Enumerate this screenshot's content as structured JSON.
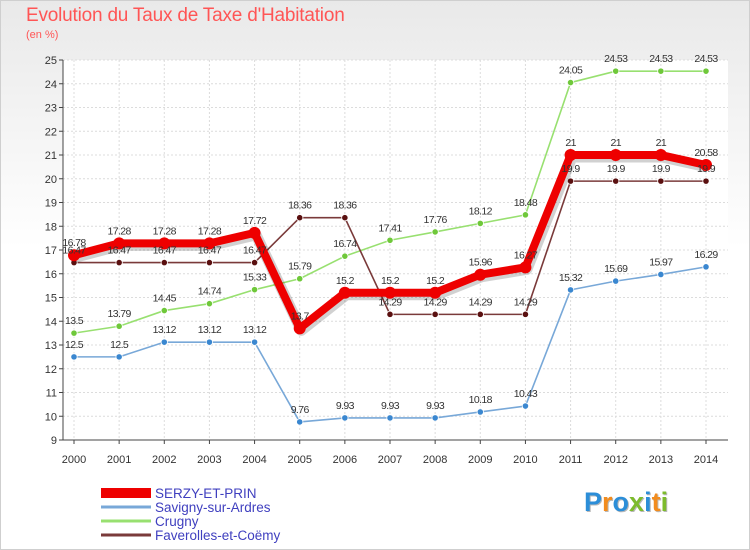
{
  "title": "Evolution du Taux de Taxe d'Habitation",
  "subtitle": "(en %)",
  "logo": {
    "text": "Proxiti",
    "letter_colors": [
      "#2c8ed8",
      "#f28c1e",
      "#2c8ed8",
      "#7dbb2c",
      "#2c8ed8",
      "#f28c1e",
      "#7dbb2c"
    ]
  },
  "chart_data": {
    "type": "line",
    "title": "Evolution du Taux de Taxe d'Habitation",
    "ylabel": "(en %)",
    "xlabel": "",
    "x": [
      "2000",
      "2001",
      "2002",
      "2003",
      "2004",
      "2005",
      "2006",
      "2007",
      "2008",
      "2009",
      "2010",
      "2011",
      "2012",
      "2013",
      "2014"
    ],
    "ylim": [
      9,
      25
    ],
    "yticks": [
      9,
      10,
      11,
      12,
      13,
      14,
      15,
      16,
      17,
      18,
      19,
      20,
      21,
      22,
      23,
      24,
      25
    ],
    "grid": true,
    "legend_position": "bottom-left",
    "series": [
      {
        "name": "SERZY-ET-PRIN",
        "color": "#ee0000",
        "marker_color": "#ee0000",
        "emphasis": true,
        "values": [
          16.78,
          17.28,
          17.28,
          17.28,
          17.72,
          13.7,
          15.2,
          15.2,
          15.2,
          15.96,
          16.27,
          21,
          21,
          21,
          20.58
        ],
        "labels": [
          "16.78",
          "17.28",
          "17.28",
          "17.28",
          "17.72",
          "13.7",
          "15.2",
          "15.2",
          "15.2",
          "15.96",
          "16.27",
          "21",
          "21",
          "21",
          "20.58"
        ]
      },
      {
        "name": "Savigny-sur-Ardres",
        "color": "#78a8d8",
        "marker_color": "#3a87d0",
        "values": [
          12.5,
          12.5,
          13.12,
          13.12,
          13.12,
          9.76,
          9.93,
          9.93,
          9.93,
          10.18,
          10.43,
          15.32,
          15.69,
          15.97,
          16.29
        ],
        "labels": [
          "12.5",
          "12.5",
          "13.12",
          "13.12",
          "13.12",
          "9.76",
          "9.93",
          "9.93",
          "9.93",
          "10.18",
          "10.43",
          "15.32",
          "15.69",
          "15.97",
          "16.29"
        ]
      },
      {
        "name": "Crugny",
        "color": "#98e070",
        "marker_color": "#6fc83a",
        "values": [
          13.5,
          13.79,
          14.45,
          14.74,
          15.33,
          15.79,
          16.74,
          17.41,
          17.76,
          18.12,
          18.48,
          24.05,
          24.53,
          24.53,
          24.53
        ],
        "labels": [
          "13.5",
          "13.79",
          "14.45",
          "14.74",
          "15.33",
          "15.79",
          "16.74",
          "17.41",
          "17.76",
          "18.12",
          "18.48",
          "24.05",
          "24.53",
          "24.53",
          "24.53"
        ]
      },
      {
        "name": "Faverolles-et-Coëmy",
        "color": "#7a3a3a",
        "marker_color": "#5a1010",
        "values": [
          16.47,
          16.47,
          16.47,
          16.47,
          16.47,
          18.36,
          18.36,
          14.29,
          14.29,
          14.29,
          14.29,
          19.9,
          19.9,
          19.9,
          19.9
        ],
        "labels": [
          "16.47",
          "16.47",
          "16.47",
          "16.47",
          "16.47",
          "18.36",
          "18.36",
          "14.29",
          "14.29",
          "14.29",
          "14.29",
          "19.9",
          "19.9",
          "19.9",
          "19.9"
        ]
      }
    ]
  }
}
